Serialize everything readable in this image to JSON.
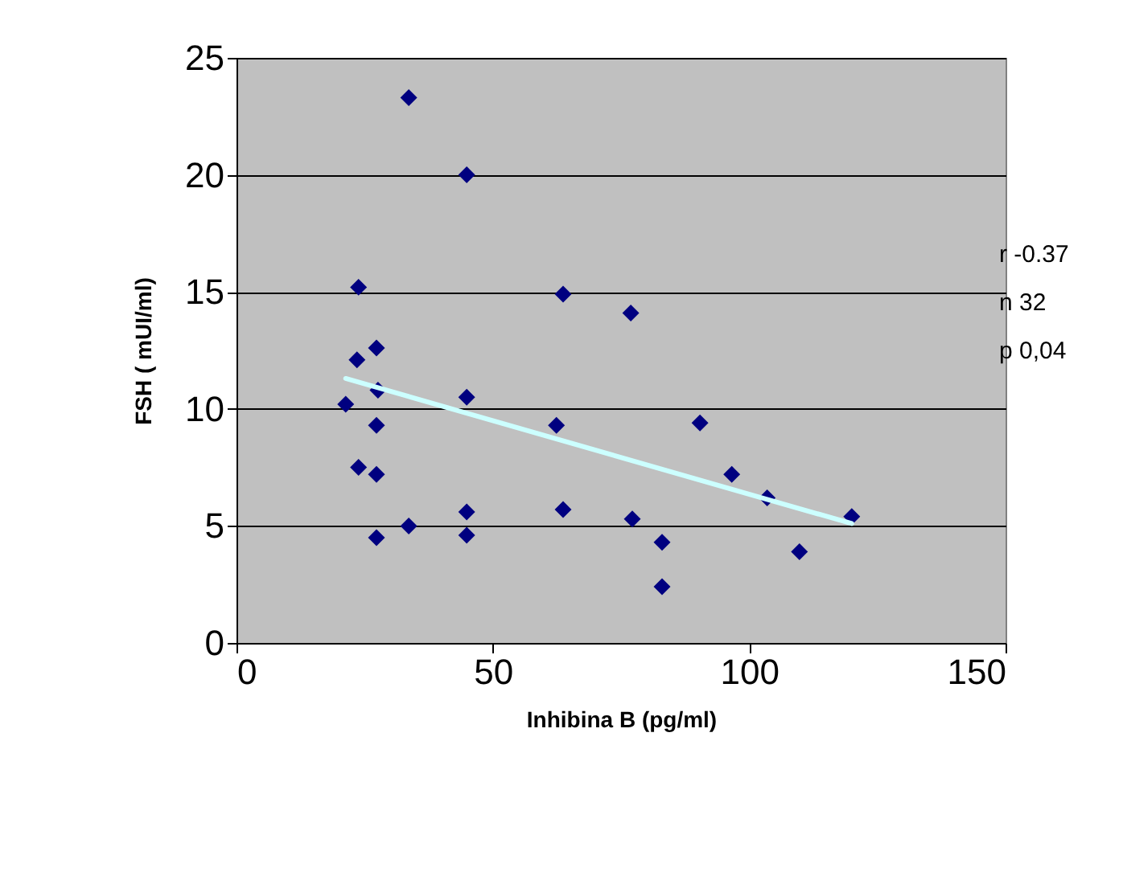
{
  "chart_data": {
    "type": "scatter",
    "xlabel": "Inhibina B (pg/ml)",
    "ylabel": "FSH (  mUI/ml)",
    "xlim": [
      0,
      150
    ],
    "xticks": [
      0,
      50,
      100,
      150
    ],
    "ylim": [
      0,
      25
    ],
    "yticks": [
      0,
      5,
      10,
      15,
      20,
      25
    ],
    "grid": "y",
    "marker": "diamond",
    "annotations": [
      "r  -0.37",
      "n     32",
      "p  0,04"
    ],
    "series": [
      {
        "color": "#000080",
        "x": [
          21.3,
          23.8,
          23.5,
          23.8,
          27.3,
          27.6,
          27.3,
          27.3,
          27.3,
          33.6,
          33.6,
          44.9,
          44.9,
          44.9,
          44.9,
          62.4,
          63.7,
          63.7,
          76.9,
          77.2,
          83,
          83,
          90.4,
          96.6,
          103.5,
          109.8,
          120
        ],
        "values": [
          10.2,
          15.2,
          12.1,
          7.5,
          12.6,
          10.8,
          9.3,
          7.2,
          4.5,
          23.3,
          5.0,
          20.0,
          10.5,
          5.6,
          4.6,
          9.3,
          14.9,
          5.7,
          14.1,
          5.3,
          4.3,
          2.4,
          9.4,
          7.2,
          6.2,
          3.9,
          5.4
        ]
      },
      {
        "type": "line",
        "marker": "none",
        "color": "#ccffff",
        "x": [
          21.3,
          120
        ],
        "values": [
          11.3,
          5.1
        ]
      }
    ]
  }
}
